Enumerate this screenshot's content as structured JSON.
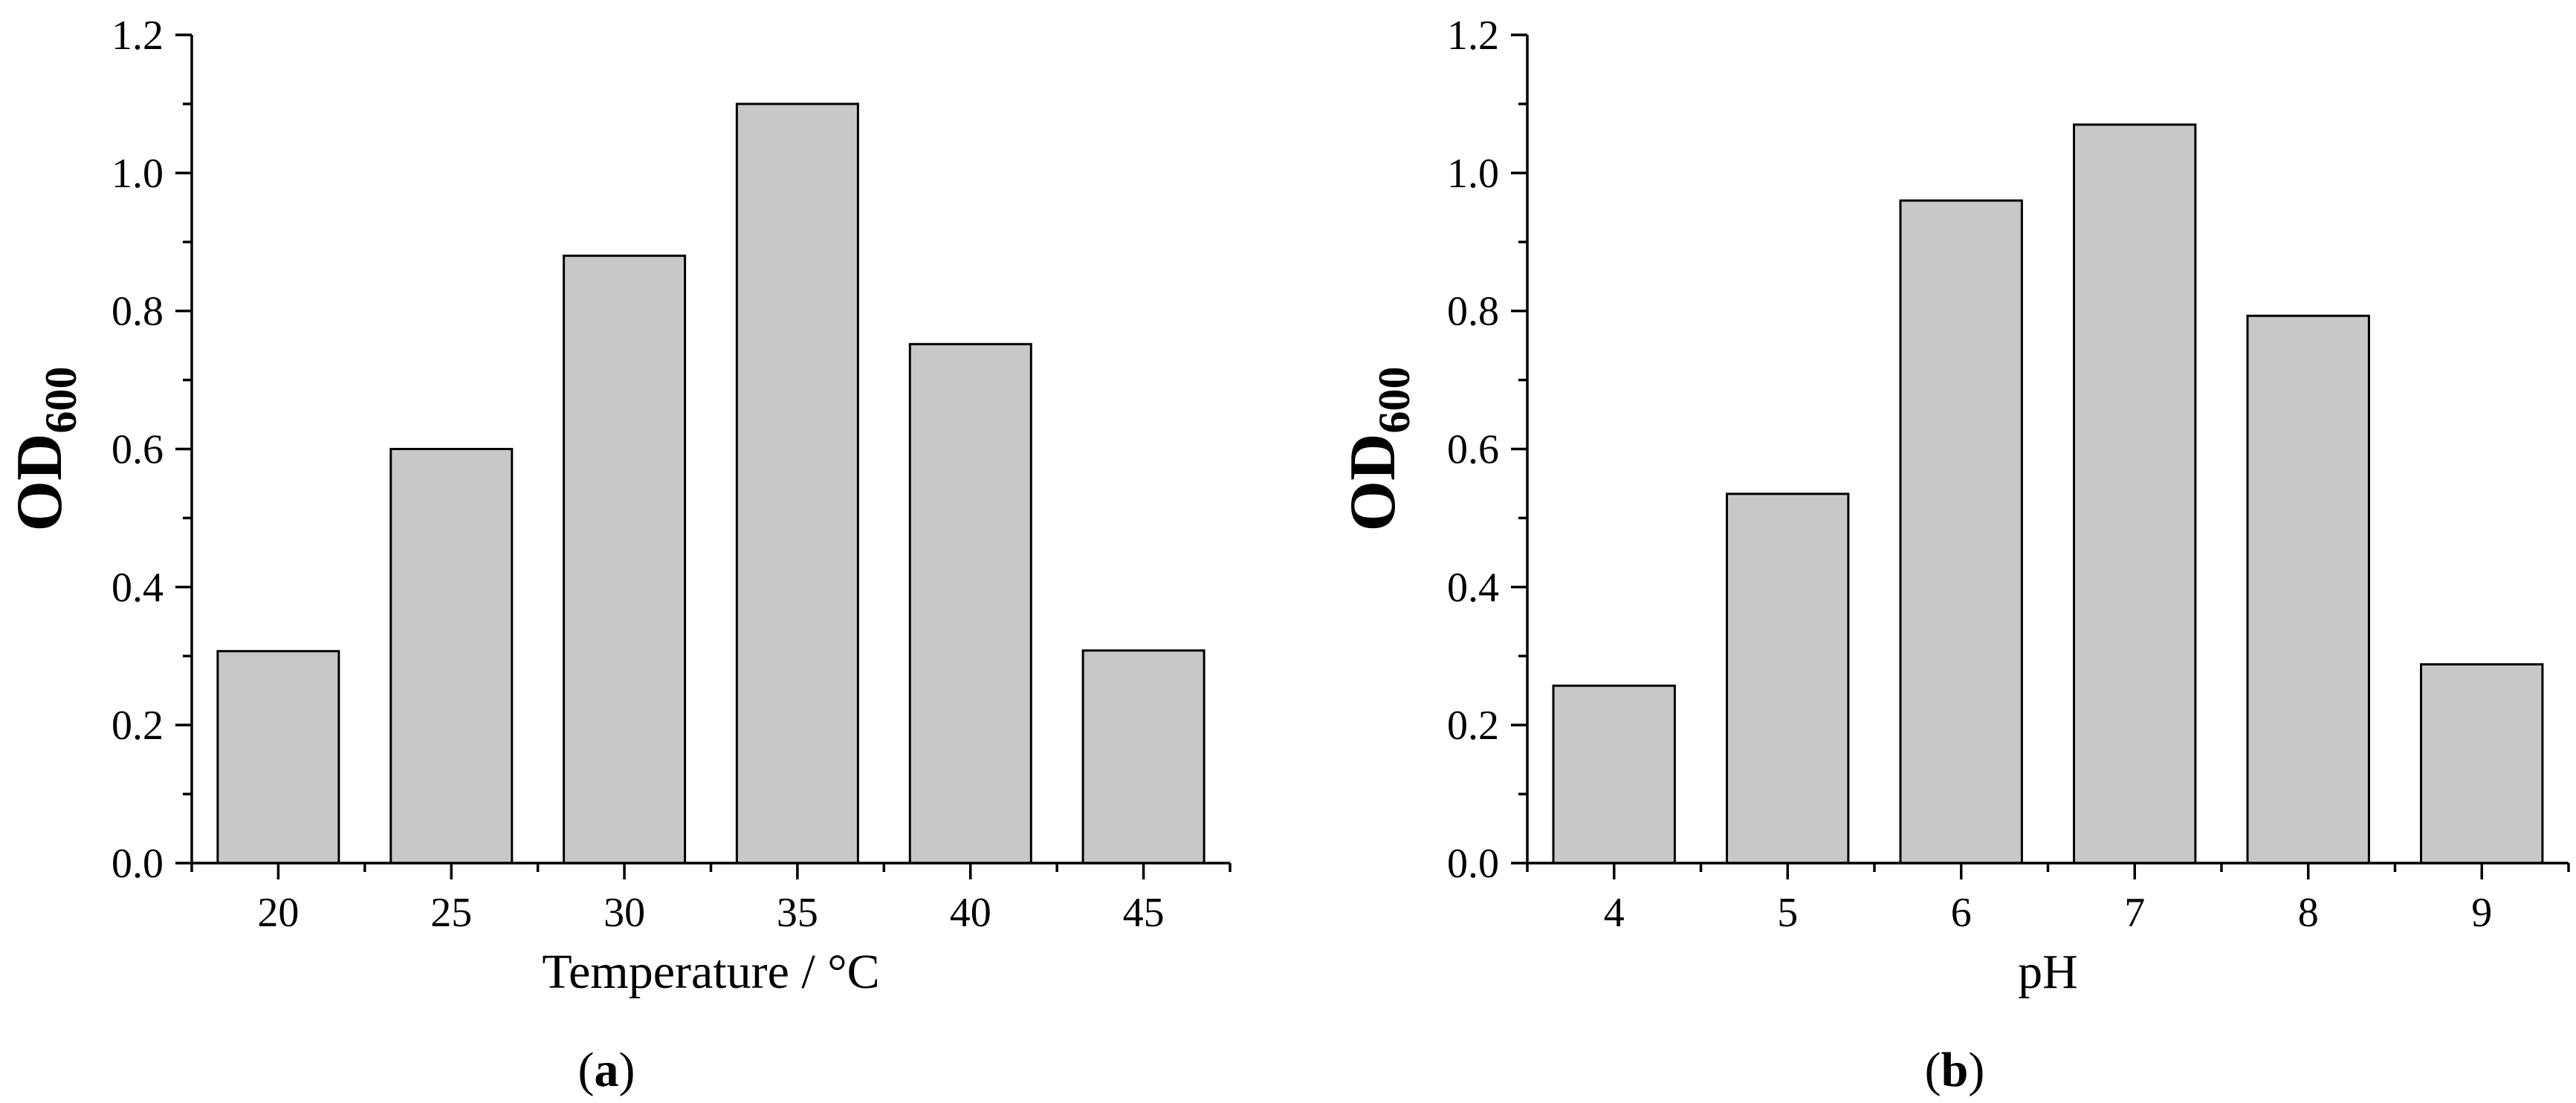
{
  "chart_data": [
    {
      "type": "bar",
      "panel_label": "a",
      "title": "",
      "xlabel": "Temperature / °C",
      "ylabel": "OD",
      "ylabel_subscript": "600",
      "categories": [
        "20",
        "25",
        "30",
        "35",
        "40",
        "45"
      ],
      "values": [
        0.307,
        0.6,
        0.88,
        1.1,
        0.752,
        0.308
      ],
      "ylim": [
        0,
        1.2
      ],
      "yticks": [
        "0.0",
        "0.2",
        "0.4",
        "0.6",
        "0.8",
        "1.0",
        "1.2"
      ],
      "bar_color": "#c8c8c8",
      "edge_color": "#000000",
      "grid": false,
      "legend": "none"
    },
    {
      "type": "bar",
      "panel_label": "b",
      "title": "",
      "xlabel": "pH",
      "ylabel": "OD",
      "ylabel_subscript": "600",
      "categories": [
        "4",
        "5",
        "6",
        "7",
        "8",
        "9"
      ],
      "values": [
        0.257,
        0.535,
        0.96,
        1.07,
        0.793,
        0.288
      ],
      "ylim": [
        0,
        1.2
      ],
      "yticks": [
        "0.0",
        "0.2",
        "0.4",
        "0.6",
        "0.8",
        "1.0",
        "1.2"
      ],
      "bar_color": "#c8c8c8",
      "edge_color": "#000000",
      "grid": false,
      "legend": "none"
    }
  ]
}
